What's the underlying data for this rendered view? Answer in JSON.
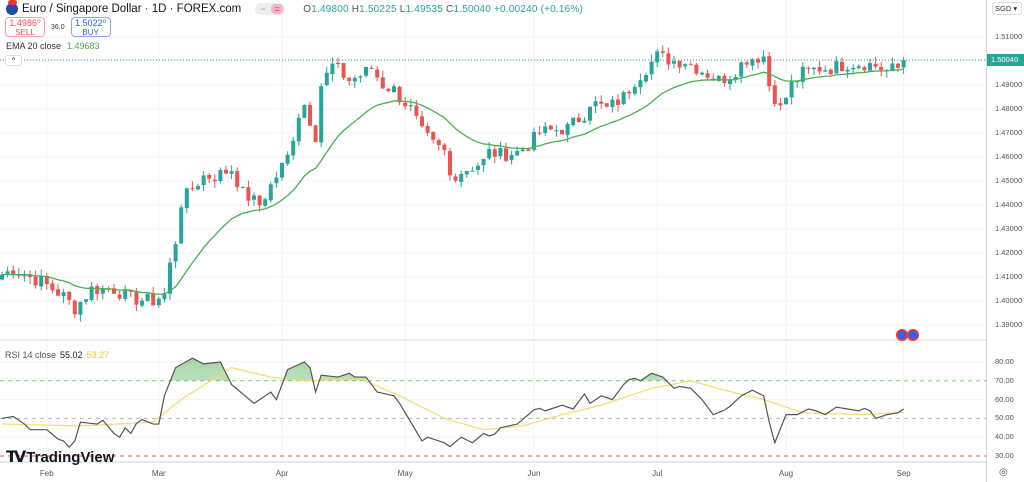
{
  "header": {
    "title": "Euro / Singapore Dollar · 1D · FOREX.com",
    "open_label": "O",
    "open": "1.49800",
    "high_label": "H",
    "high": "1.50225",
    "low_label": "L",
    "low": "1.49535",
    "close_label": "C",
    "close": "1.50040",
    "change": "+0.00240 (+0.16%)"
  },
  "trade": {
    "sell_price": "1.4986⁰",
    "sell_label": "SELL",
    "spread": "36.0",
    "buy_price": "1.5022⁰",
    "buy_label": "BUY"
  },
  "ema": {
    "label": "EMA 20 close",
    "value": "1.49683"
  },
  "rsi": {
    "label": "RSI 14 close",
    "value": "55.02",
    "ma_value": "53.27"
  },
  "axis": {
    "currency": "SGD ▾",
    "current_price": "1.50040",
    "price_ticks": [
      "1.51000",
      "1.49000",
      "1.48000",
      "1.47000",
      "1.46000",
      "1.45000",
      "1.44000",
      "1.43000",
      "1.42000",
      "1.41000",
      "1.40000",
      "1.39000"
    ],
    "rsi_ticks": [
      "80.00",
      "70.00",
      "60.00",
      "50.00",
      "40.00",
      "30.00"
    ]
  },
  "xaxis": {
    "months": [
      "Feb",
      "Mar",
      "Apr",
      "May",
      "Jun",
      "Jul",
      "Aug",
      "Sep"
    ]
  },
  "brand": "TradingView",
  "colors": {
    "up": "#26a69a",
    "down": "#ef5350",
    "ema": "#4caf50",
    "rsi": "#555555",
    "rsi_ma": "#f5dc6e"
  },
  "chart_data": {
    "type": "candlestick",
    "candle_count": 162,
    "price_range": [
      1.385,
      1.515
    ],
    "close_keypoints": [
      [
        0,
        1.411
      ],
      [
        2,
        1.413
      ],
      [
        7,
        1.408
      ],
      [
        11,
        1.402
      ],
      [
        13,
        1.397
      ],
      [
        16,
        1.405
      ],
      [
        20,
        1.405
      ],
      [
        23,
        1.401
      ],
      [
        27,
        1.4
      ],
      [
        29,
        1.403
      ],
      [
        30,
        1.415
      ],
      [
        31,
        1.425
      ],
      [
        32,
        1.441
      ],
      [
        34,
        1.447
      ],
      [
        36,
        1.452
      ],
      [
        38,
        1.452
      ],
      [
        41,
        1.455
      ],
      [
        43,
        1.445
      ],
      [
        46,
        1.44
      ],
      [
        48,
        1.448
      ],
      [
        51,
        1.46
      ],
      [
        53,
        1.478
      ],
      [
        54,
        1.482
      ],
      [
        56,
        1.469
      ],
      [
        57,
        1.49
      ],
      [
        59,
        1.498
      ],
      [
        62,
        1.492
      ],
      [
        64,
        1.494
      ],
      [
        66,
        1.497
      ],
      [
        68,
        1.49
      ],
      [
        70,
        1.488
      ],
      [
        71,
        1.485
      ],
      [
        73,
        1.48
      ],
      [
        75,
        1.47
      ],
      [
        77,
        1.465
      ],
      [
        79,
        1.462
      ],
      [
        80,
        1.452
      ],
      [
        83,
        1.455
      ],
      [
        86,
        1.458
      ],
      [
        87,
        1.462
      ],
      [
        89,
        1.461
      ],
      [
        92,
        1.462
      ],
      [
        94,
        1.465
      ],
      [
        96,
        1.47
      ],
      [
        98,
        1.471
      ],
      [
        101,
        1.472
      ],
      [
        104,
        1.478
      ],
      [
        105,
        1.483
      ],
      [
        108,
        1.48
      ],
      [
        111,
        1.485
      ],
      [
        113,
        1.492
      ],
      [
        115,
        1.497
      ],
      [
        117,
        1.502
      ],
      [
        120,
        1.5
      ],
      [
        122,
        1.5
      ],
      [
        125,
        1.496
      ],
      [
        128,
        1.492
      ],
      [
        130,
        1.494
      ],
      [
        133,
        1.501
      ],
      [
        136,
        1.502
      ],
      [
        137,
        1.49
      ],
      [
        139,
        1.48
      ],
      [
        141,
        1.49
      ],
      [
        143,
        1.495
      ],
      [
        146,
        1.497
      ],
      [
        148,
        1.497
      ],
      [
        151,
        1.499
      ],
      [
        154,
        1.499
      ],
      [
        156,
        1.498
      ],
      [
        158,
        1.496
      ],
      [
        160,
        1.497
      ],
      [
        161,
        1.5004
      ]
    ],
    "month_start_index": [
      8,
      28,
      50,
      72,
      95,
      117,
      140,
      161
    ],
    "rsi_range": [
      25,
      87
    ],
    "rsi_keypoints": [
      [
        0,
        50
      ],
      [
        2,
        51
      ],
      [
        4,
        47
      ],
      [
        5,
        44
      ],
      [
        8,
        44
      ],
      [
        10,
        39
      ],
      [
        11,
        38
      ],
      [
        12.5,
        33
      ],
      [
        14,
        48
      ],
      [
        17,
        47
      ],
      [
        18,
        49
      ],
      [
        20,
        42
      ],
      [
        21,
        40
      ],
      [
        22,
        45
      ],
      [
        23,
        42
      ],
      [
        24.5,
        50
      ],
      [
        27,
        47
      ],
      [
        28,
        47
      ],
      [
        29,
        62
      ],
      [
        31,
        77
      ],
      [
        34,
        82
      ],
      [
        36,
        79
      ],
      [
        39,
        80
      ],
      [
        41,
        68
      ],
      [
        43,
        63
      ],
      [
        45,
        58
      ],
      [
        46,
        60
      ],
      [
        48,
        64
      ],
      [
        49,
        60
      ],
      [
        51,
        76
      ],
      [
        54,
        80
      ],
      [
        55,
        77
      ],
      [
        56,
        64
      ],
      [
        57,
        73
      ],
      [
        60,
        72
      ],
      [
        62,
        74
      ],
      [
        63,
        72
      ],
      [
        65,
        72
      ],
      [
        67,
        64
      ],
      [
        70,
        62
      ],
      [
        71,
        58
      ],
      [
        73,
        48
      ],
      [
        75,
        38
      ],
      [
        76,
        40
      ],
      [
        79,
        37
      ],
      [
        80,
        35
      ],
      [
        82,
        40
      ],
      [
        84,
        37
      ],
      [
        86,
        42
      ],
      [
        87.5,
        40
      ],
      [
        89,
        45
      ],
      [
        92,
        47
      ],
      [
        94,
        52
      ],
      [
        95.5,
        56
      ],
      [
        97,
        54
      ],
      [
        100,
        57
      ],
      [
        102,
        55
      ],
      [
        104,
        63
      ],
      [
        105,
        58
      ],
      [
        107,
        62
      ],
      [
        109,
        60
      ],
      [
        111,
        68
      ],
      [
        112.5,
        72
      ],
      [
        114,
        70
      ],
      [
        116,
        74
      ],
      [
        118,
        72
      ],
      [
        120,
        66
      ],
      [
        121,
        67
      ],
      [
        123,
        66
      ],
      [
        125,
        60
      ],
      [
        127,
        52
      ],
      [
        129.5,
        55
      ],
      [
        132,
        62
      ],
      [
        134,
        65
      ],
      [
        136,
        62
      ],
      [
        137,
        48
      ],
      [
        138,
        37
      ],
      [
        140,
        52
      ],
      [
        142,
        52
      ],
      [
        144,
        55
      ],
      [
        145.5,
        54
      ],
      [
        147,
        52
      ],
      [
        149,
        56
      ],
      [
        151,
        55
      ],
      [
        153,
        54
      ],
      [
        154.5,
        56
      ],
      [
        156,
        50
      ],
      [
        158,
        52
      ],
      [
        160,
        53
      ],
      [
        161,
        55
      ]
    ],
    "rsi_ma_keypoints": [
      [
        0,
        47
      ],
      [
        14,
        46
      ],
      [
        27,
        48
      ],
      [
        32,
        60
      ],
      [
        41,
        77
      ],
      [
        48,
        72
      ],
      [
        54,
        70
      ],
      [
        64,
        71
      ],
      [
        71,
        62
      ],
      [
        79,
        50
      ],
      [
        86,
        44
      ],
      [
        93,
        46
      ],
      [
        100,
        52
      ],
      [
        107,
        57
      ],
      [
        116,
        66
      ],
      [
        123,
        70
      ],
      [
        129,
        65
      ],
      [
        136,
        60
      ],
      [
        143,
        53
      ],
      [
        154,
        52
      ],
      [
        161,
        53.27
      ]
    ],
    "rsi_levels": [
      70,
      50,
      30
    ]
  }
}
